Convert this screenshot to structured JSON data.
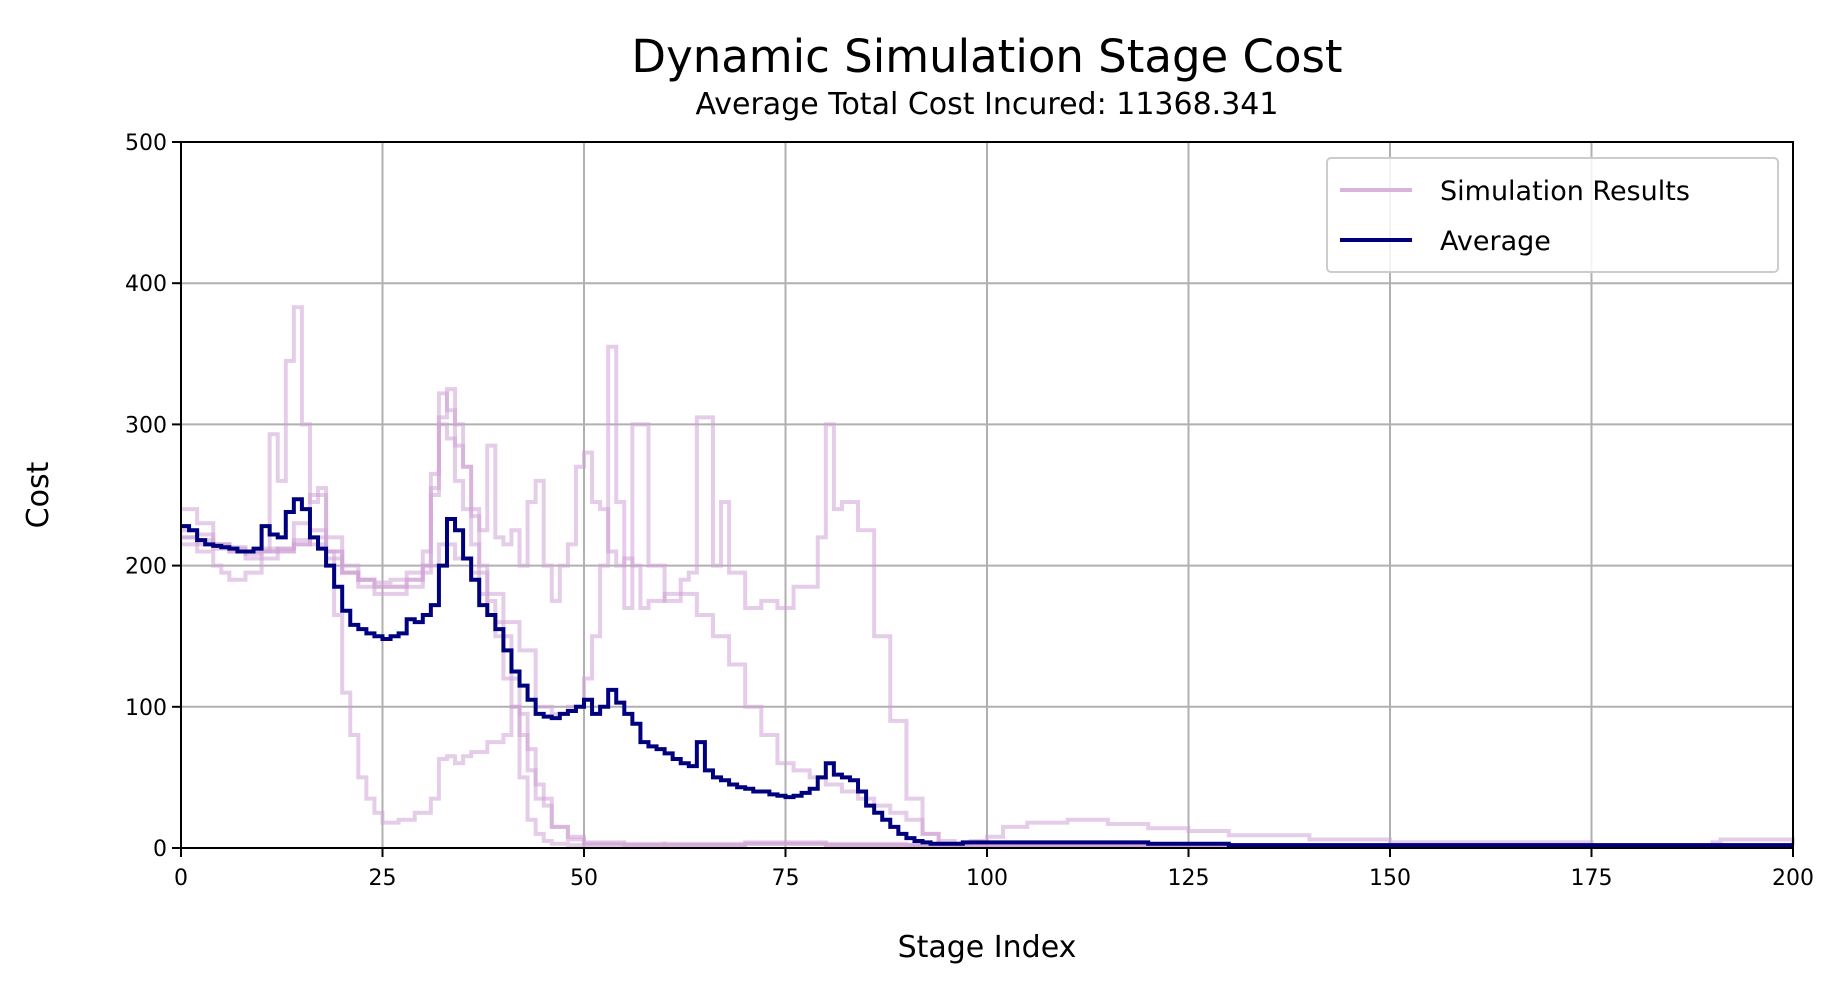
{
  "chart_data": {
    "type": "line",
    "step": true,
    "title": "Dynamic Simulation Stage Cost",
    "subtitle": "Average Total Cost Incured: 11368.341",
    "xlabel": "Stage Index",
    "ylabel": "Cost",
    "xlim": [
      0,
      200
    ],
    "ylim": [
      0,
      500
    ],
    "xticks": [
      0,
      25,
      50,
      75,
      100,
      125,
      150,
      175,
      200
    ],
    "yticks": [
      0,
      100,
      200,
      300,
      400,
      500
    ],
    "grid": true,
    "legend_position": "top-right",
    "legend": [
      {
        "label": "Simulation Results",
        "color": "#d8b4dc",
        "kind": "simulation"
      },
      {
        "label": "Average",
        "color": "#00007f",
        "kind": "average"
      }
    ],
    "series": [
      {
        "name": "Simulation Results",
        "color": "#cfa3d6",
        "x": [
          0,
          2,
          4,
          6,
          8,
          10,
          11,
          12,
          13,
          14,
          15,
          16,
          17,
          18,
          19,
          20,
          21,
          22,
          23,
          24,
          25,
          27,
          29,
          31,
          32,
          33,
          34,
          35,
          36,
          38,
          40,
          41,
          42,
          43,
          44,
          45,
          46,
          48,
          50,
          52,
          55,
          60,
          70,
          80,
          90,
          100,
          120,
          150,
          200
        ],
        "y": [
          240,
          230,
          215,
          210,
          205,
          210,
          293,
          260,
          345,
          383,
          300,
          245,
          255,
          210,
          165,
          110,
          80,
          50,
          35,
          25,
          18,
          20,
          25,
          35,
          63,
          65,
          60,
          65,
          68,
          75,
          80,
          100,
          50,
          20,
          10,
          5,
          3,
          2,
          2,
          2,
          2,
          3,
          4,
          3,
          2,
          2,
          2,
          2,
          2
        ]
      },
      {
        "name": "Simulation Results",
        "color": "#cfa3d6",
        "x": [
          0,
          2,
          4,
          6,
          8,
          10,
          12,
          14,
          16,
          18,
          20,
          22,
          24,
          26,
          28,
          30,
          31,
          32,
          33,
          34,
          35,
          36,
          37,
          38,
          39,
          40,
          41,
          42,
          43,
          44,
          45,
          46,
          48,
          50,
          55,
          60,
          70,
          80,
          90,
          100,
          120,
          150,
          200
        ],
        "y": [
          220,
          218,
          215,
          213,
          210,
          210,
          212,
          218,
          215,
          205,
          195,
          190,
          188,
          190,
          195,
          210,
          255,
          322,
          310,
          285,
          270,
          235,
          180,
          165,
          160,
          150,
          120,
          95,
          70,
          45,
          30,
          15,
          8,
          4,
          3,
          2,
          3,
          2,
          2,
          2,
          2,
          2,
          2
        ]
      },
      {
        "name": "Simulation Results",
        "color": "#cfa3d6",
        "x": [
          0,
          2,
          4,
          6,
          8,
          10,
          12,
          14,
          16,
          18,
          20,
          22,
          24,
          26,
          28,
          30,
          31,
          32,
          33,
          34,
          35,
          36,
          37,
          38,
          39,
          40,
          41,
          42,
          43,
          44,
          46,
          48,
          50,
          55,
          60,
          70,
          80,
          90,
          100,
          120,
          150,
          200
        ],
        "y": [
          225,
          222,
          215,
          212,
          210,
          212,
          210,
          215,
          225,
          210,
          195,
          185,
          180,
          180,
          185,
          195,
          265,
          300,
          290,
          260,
          240,
          215,
          200,
          175,
          150,
          120,
          100,
          80,
          55,
          35,
          15,
          6,
          3,
          2,
          2,
          3,
          2,
          2,
          2,
          2,
          2,
          2
        ]
      },
      {
        "name": "Simulation Results",
        "color": "#cfa3d6",
        "x": [
          0,
          2,
          4,
          5,
          6,
          8,
          10,
          12,
          14,
          16,
          18,
          20,
          22,
          24,
          26,
          28,
          30,
          31,
          32,
          33,
          34,
          35,
          36,
          37,
          38,
          39,
          40,
          41,
          42,
          43,
          44,
          45,
          46,
          47,
          48,
          49,
          50,
          51,
          52,
          53,
          54,
          55,
          56,
          57,
          58,
          60,
          62,
          63,
          64,
          66,
          67,
          68,
          70,
          72,
          74,
          76,
          78,
          79,
          80,
          81,
          82,
          84,
          86,
          88,
          90,
          92,
          94,
          96,
          98,
          100,
          102,
          105,
          110,
          115,
          120,
          125,
          130,
          140,
          150,
          175,
          200
        ],
        "y": [
          215,
          210,
          200,
          195,
          190,
          195,
          205,
          210,
          230,
          250,
          220,
          195,
          190,
          185,
          185,
          190,
          200,
          250,
          305,
          325,
          300,
          270,
          240,
          225,
          285,
          220,
          215,
          225,
          200,
          245,
          260,
          200,
          175,
          200,
          215,
          270,
          280,
          245,
          240,
          210,
          200,
          205,
          200,
          170,
          175,
          180,
          190,
          195,
          305,
          200,
          245,
          195,
          170,
          175,
          170,
          185,
          185,
          220,
          300,
          240,
          245,
          225,
          150,
          90,
          35,
          10,
          3,
          2,
          5,
          8,
          15,
          18,
          20,
          17,
          14,
          12,
          9,
          6,
          4,
          2,
          2
        ]
      },
      {
        "name": "Simulation Results",
        "color": "#cfa3d6",
        "x": [
          0,
          2,
          4,
          6,
          8,
          10,
          12,
          14,
          16,
          18,
          20,
          22,
          24,
          26,
          28,
          30,
          32,
          34,
          36,
          38,
          40,
          42,
          44,
          46,
          48,
          50,
          51,
          52,
          53,
          54,
          55,
          56,
          58,
          60,
          62,
          64,
          66,
          68,
          70,
          72,
          74,
          76,
          78,
          80,
          82,
          84,
          86,
          88,
          90,
          92,
          94,
          96,
          100,
          120,
          150,
          175,
          190,
          191,
          200
        ],
        "y": [
          220,
          215,
          212,
          210,
          208,
          210,
          212,
          215,
          220,
          210,
          200,
          190,
          185,
          185,
          190,
          200,
          215,
          205,
          195,
          180,
          160,
          140,
          100,
          95,
          100,
          120,
          150,
          200,
          355,
          245,
          170,
          300,
          200,
          175,
          180,
          165,
          150,
          130,
          100,
          80,
          60,
          55,
          50,
          45,
          40,
          35,
          30,
          25,
          20,
          10,
          5,
          3,
          2,
          2,
          2,
          2,
          4,
          6,
          2
        ]
      },
      {
        "name": "Average",
        "color": "#00007f",
        "x": [
          0,
          1,
          2,
          3,
          4,
          5,
          6,
          7,
          8,
          9,
          10,
          11,
          12,
          13,
          14,
          15,
          16,
          17,
          18,
          19,
          20,
          21,
          22,
          23,
          24,
          25,
          26,
          27,
          28,
          29,
          30,
          31,
          32,
          33,
          34,
          35,
          36,
          37,
          38,
          39,
          40,
          41,
          42,
          43,
          44,
          45,
          46,
          47,
          48,
          49,
          50,
          51,
          52,
          53,
          54,
          55,
          56,
          57,
          58,
          59,
          60,
          61,
          62,
          63,
          64,
          65,
          66,
          67,
          68,
          69,
          70,
          71,
          72,
          73,
          74,
          75,
          76,
          77,
          78,
          79,
          80,
          81,
          82,
          83,
          84,
          85,
          86,
          87,
          88,
          89,
          90,
          91,
          92,
          93,
          94,
          95,
          96,
          97,
          98,
          99,
          100,
          105,
          110,
          115,
          120,
          125,
          130,
          140,
          150,
          175,
          200
        ],
        "y": [
          228,
          225,
          218,
          215,
          214,
          213,
          212,
          210,
          210,
          212,
          228,
          222,
          220,
          238,
          247,
          240,
          220,
          212,
          200,
          185,
          168,
          158,
          155,
          152,
          150,
          148,
          150,
          152,
          162,
          160,
          165,
          172,
          200,
          233,
          225,
          205,
          190,
          172,
          165,
          155,
          140,
          125,
          115,
          105,
          95,
          93,
          92,
          95,
          97,
          100,
          105,
          95,
          100,
          112,
          103,
          95,
          88,
          75,
          72,
          70,
          67,
          63,
          60,
          58,
          75,
          55,
          50,
          48,
          45,
          43,
          42,
          40,
          40,
          38,
          37,
          36,
          37,
          39,
          42,
          50,
          60,
          52,
          50,
          48,
          40,
          30,
          25,
          20,
          15,
          10,
          7,
          5,
          4,
          3,
          3,
          3,
          3,
          4,
          4,
          4,
          4,
          4,
          4,
          4,
          3,
          3,
          2,
          2,
          2,
          2,
          2
        ]
      }
    ]
  }
}
